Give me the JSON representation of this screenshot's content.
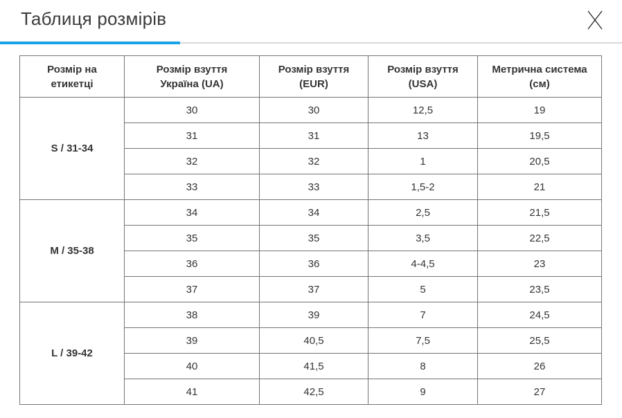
{
  "header": {
    "title": "Таблиця розмірів",
    "accent_color": "#18a2e8",
    "divider_color": "#d8d8d8",
    "close_icon": "x"
  },
  "table": {
    "border_color": "#737373",
    "columns": [
      "Розмір на\nетикетці",
      "Розмір взуття\nУкраїна (UA)",
      "Розмір взуття\n(EUR)",
      "Розмір взуття\n(USA)",
      "Метрична система\n(см)"
    ],
    "groups": [
      {
        "label": "S / 31-34",
        "rows": [
          [
            "30",
            "30",
            "12,5",
            "19"
          ],
          [
            "31",
            "31",
            "13",
            "19,5"
          ],
          [
            "32",
            "32",
            "1",
            "20,5"
          ],
          [
            "33",
            "33",
            "1,5-2",
            "21"
          ]
        ]
      },
      {
        "label": "M / 35-38",
        "rows": [
          [
            "34",
            "34",
            "2,5",
            "21,5"
          ],
          [
            "35",
            "35",
            "3,5",
            "22,5"
          ],
          [
            "36",
            "36",
            "4-4,5",
            "23"
          ],
          [
            "37",
            "37",
            "5",
            "23,5"
          ]
        ]
      },
      {
        "label": "L / 39-42",
        "rows": [
          [
            "38",
            "39",
            "7",
            "24,5"
          ],
          [
            "39",
            "40,5",
            "7,5",
            "25,5"
          ],
          [
            "40",
            "41,5",
            "8",
            "26"
          ],
          [
            "41",
            "42,5",
            "9",
            "27"
          ]
        ]
      }
    ]
  }
}
